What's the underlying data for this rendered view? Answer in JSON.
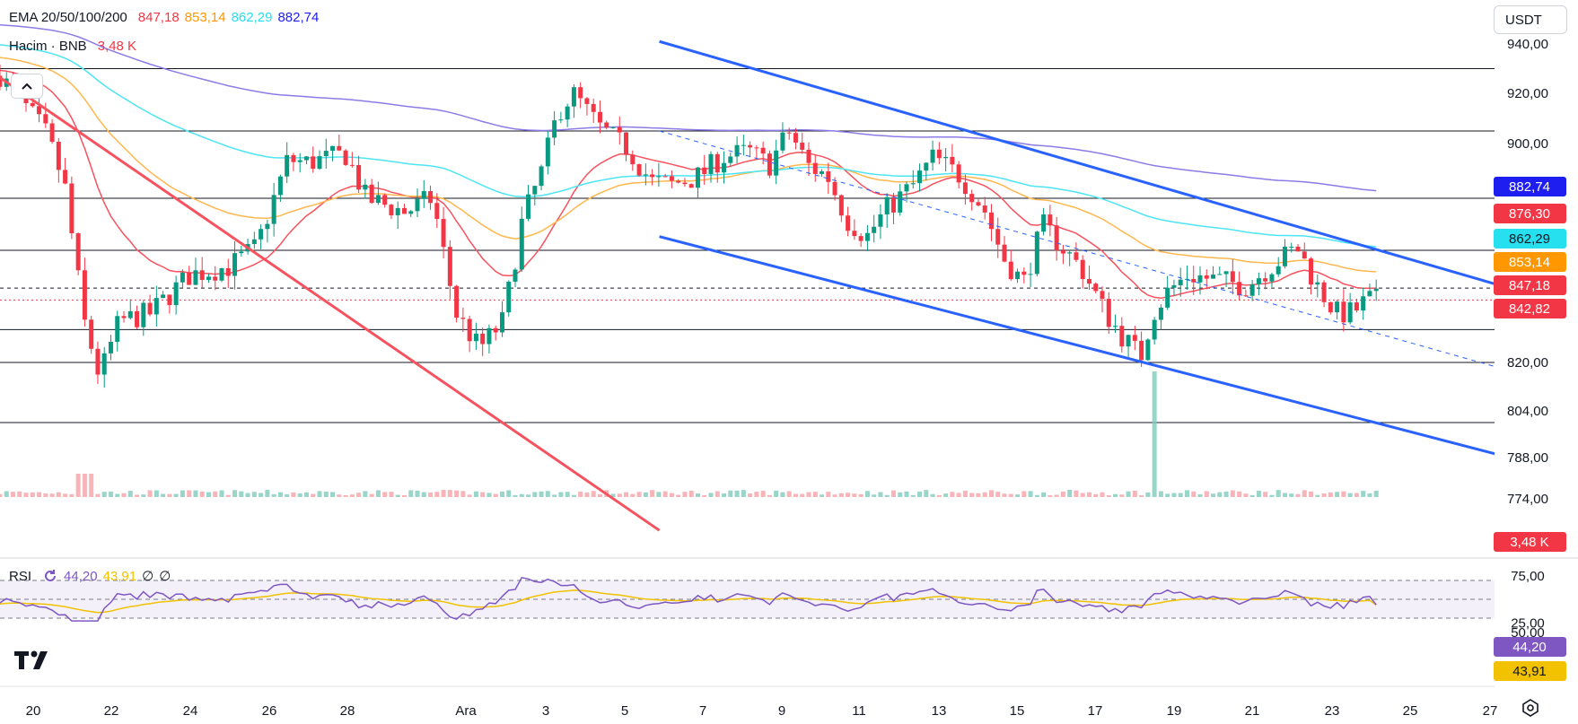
{
  "currency": "USDT",
  "legend_ema": {
    "label": "EMA 20/50/100/200",
    "v20": "847,18",
    "v50": "853,14",
    "v100": "862,29",
    "v200": "882,74",
    "c20": "#f23645",
    "c50": "#ff9800",
    "c100": "#26e0f0",
    "c200": "#1e1ef0"
  },
  "legend_volume": {
    "label": "Hacim · BNB",
    "value": "3,48 K",
    "color": "#f23645"
  },
  "legend_rsi": {
    "label": "RSI",
    "v1": "44,20",
    "v2": "43,91",
    "v3": "∅",
    "v4": "∅",
    "c1": "#7e57c2",
    "c2": "#f2c200"
  },
  "price_axis": [
    "940,00",
    "920,00",
    "900,00",
    "882,74",
    "876,30",
    "862,29",
    "853,14",
    "847,18",
    "842,82",
    "820,00",
    "804,00",
    "788,00",
    "774,00"
  ],
  "price_labels": [
    {
      "text": "882,74",
      "bg": "#1e1ef0",
      "fg": "#ffffff",
      "value": 882.74
    },
    {
      "text": "876,30",
      "bg": "#f23645",
      "fg": "#ffffff",
      "value": 876.3
    },
    {
      "text": "862,29",
      "bg": "#26e0f0",
      "fg": "#131722",
      "value": 862.29
    },
    {
      "text": "853,14",
      "bg": "#ff9800",
      "fg": "#ffffff",
      "value": 853.14
    },
    {
      "text": "847,18",
      "bg": "#f23645",
      "fg": "#ffffff",
      "value": 847.18
    },
    {
      "text": "842,82",
      "bg": "#f23645",
      "fg": "#ffffff",
      "value": 842.82
    }
  ],
  "volume_label": "3,48 K",
  "rsi_axis": [
    "75,00",
    "50,00",
    "25,00"
  ],
  "rsi_labels": [
    {
      "text": "44,20",
      "bg": "#7e57c2",
      "fg": "#ffffff",
      "value": 44.2
    },
    {
      "text": "43,91",
      "bg": "#f2c200",
      "fg": "#131722",
      "value": 43.91
    }
  ],
  "time_axis": [
    "20",
    "22",
    "24",
    "26",
    "28",
    "Ara",
    "3",
    "5",
    "7",
    "9",
    "11",
    "13",
    "15",
    "17",
    "19",
    "21",
    "23",
    "25",
    "27"
  ],
  "chart_data": {
    "type": "line",
    "symbol": "BNB/USDT",
    "horizontal_levels": [
      930,
      905,
      880,
      861,
      832,
      820,
      800
    ],
    "ema_values": {
      "ema20": 847.18,
      "ema50": 853.14,
      "ema100": 862.29,
      "ema200": 882.74
    },
    "last_price": 842.82,
    "rsi": {
      "rsi": 44.2,
      "ma": 43.91,
      "upper": 70,
      "middle": 50,
      "lower": 30
    },
    "trendlines": [
      {
        "name": "downtrend",
        "color": "#f7525f",
        "from": {
          "date": "Nov 19",
          "price": 928
        },
        "to": {
          "date": "Dec 5",
          "price": 762
        }
      },
      {
        "name": "channel-upper",
        "color": "#2962ff",
        "from": {
          "date": "Dec 5",
          "price": 941
        },
        "to": {
          "date": "Dec 27",
          "price": 846
        }
      },
      {
        "name": "channel-lower",
        "color": "#2962ff",
        "from": {
          "date": "Dec 5",
          "price": 866
        },
        "to": {
          "date": "Dec 27",
          "price": 787
        }
      }
    ]
  }
}
